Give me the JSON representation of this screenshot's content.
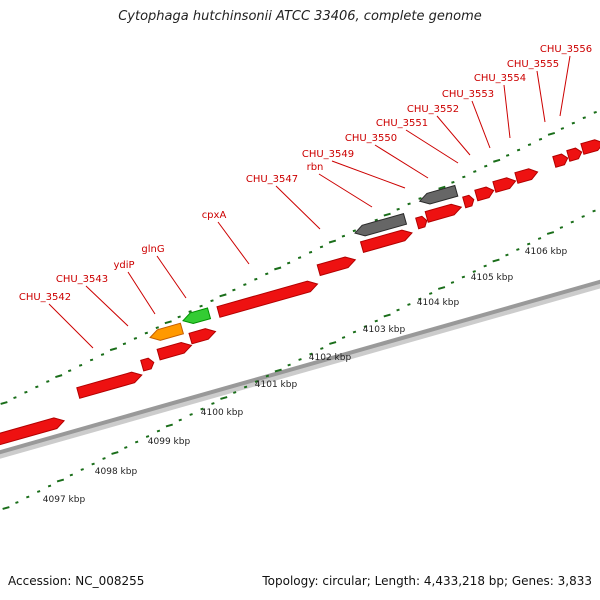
{
  "title": "Cytophaga hutchinsonii ATCC 33406, complete genome",
  "footer": {
    "accession": "Accession: NC_008255",
    "topology": "Topology: circular; Length: 4,433,218 bp; Genes: 3,833"
  },
  "colors": {
    "gene_default": "#ee1111",
    "gene_highlight_green": "#33cc33",
    "gene_highlight_orange": "#ff9900",
    "gene_gray": "#666666",
    "backbone": "#999999",
    "tick": "#1a6e1a",
    "label": "#cc0000",
    "leader": "#cc0000"
  },
  "kbp_labels": [
    "4097 kbp",
    "4098 kbp",
    "4099 kbp",
    "4100 kbp",
    "4101 kbp",
    "4102 kbp",
    "4103 kbp",
    "4104 kbp",
    "4105 kbp",
    "4106 kbp"
  ],
  "gene_labels": [
    "CHU_3542",
    "CHU_3543",
    "ydiP",
    "glnG",
    "cpxA",
    "CHU_3547",
    "rbn",
    "CHU_3549",
    "CHU_3550",
    "CHU_3551",
    "CHU_3552",
    "CHU_3553",
    "CHU_3554",
    "CHU_3555",
    "CHU_3556"
  ]
}
